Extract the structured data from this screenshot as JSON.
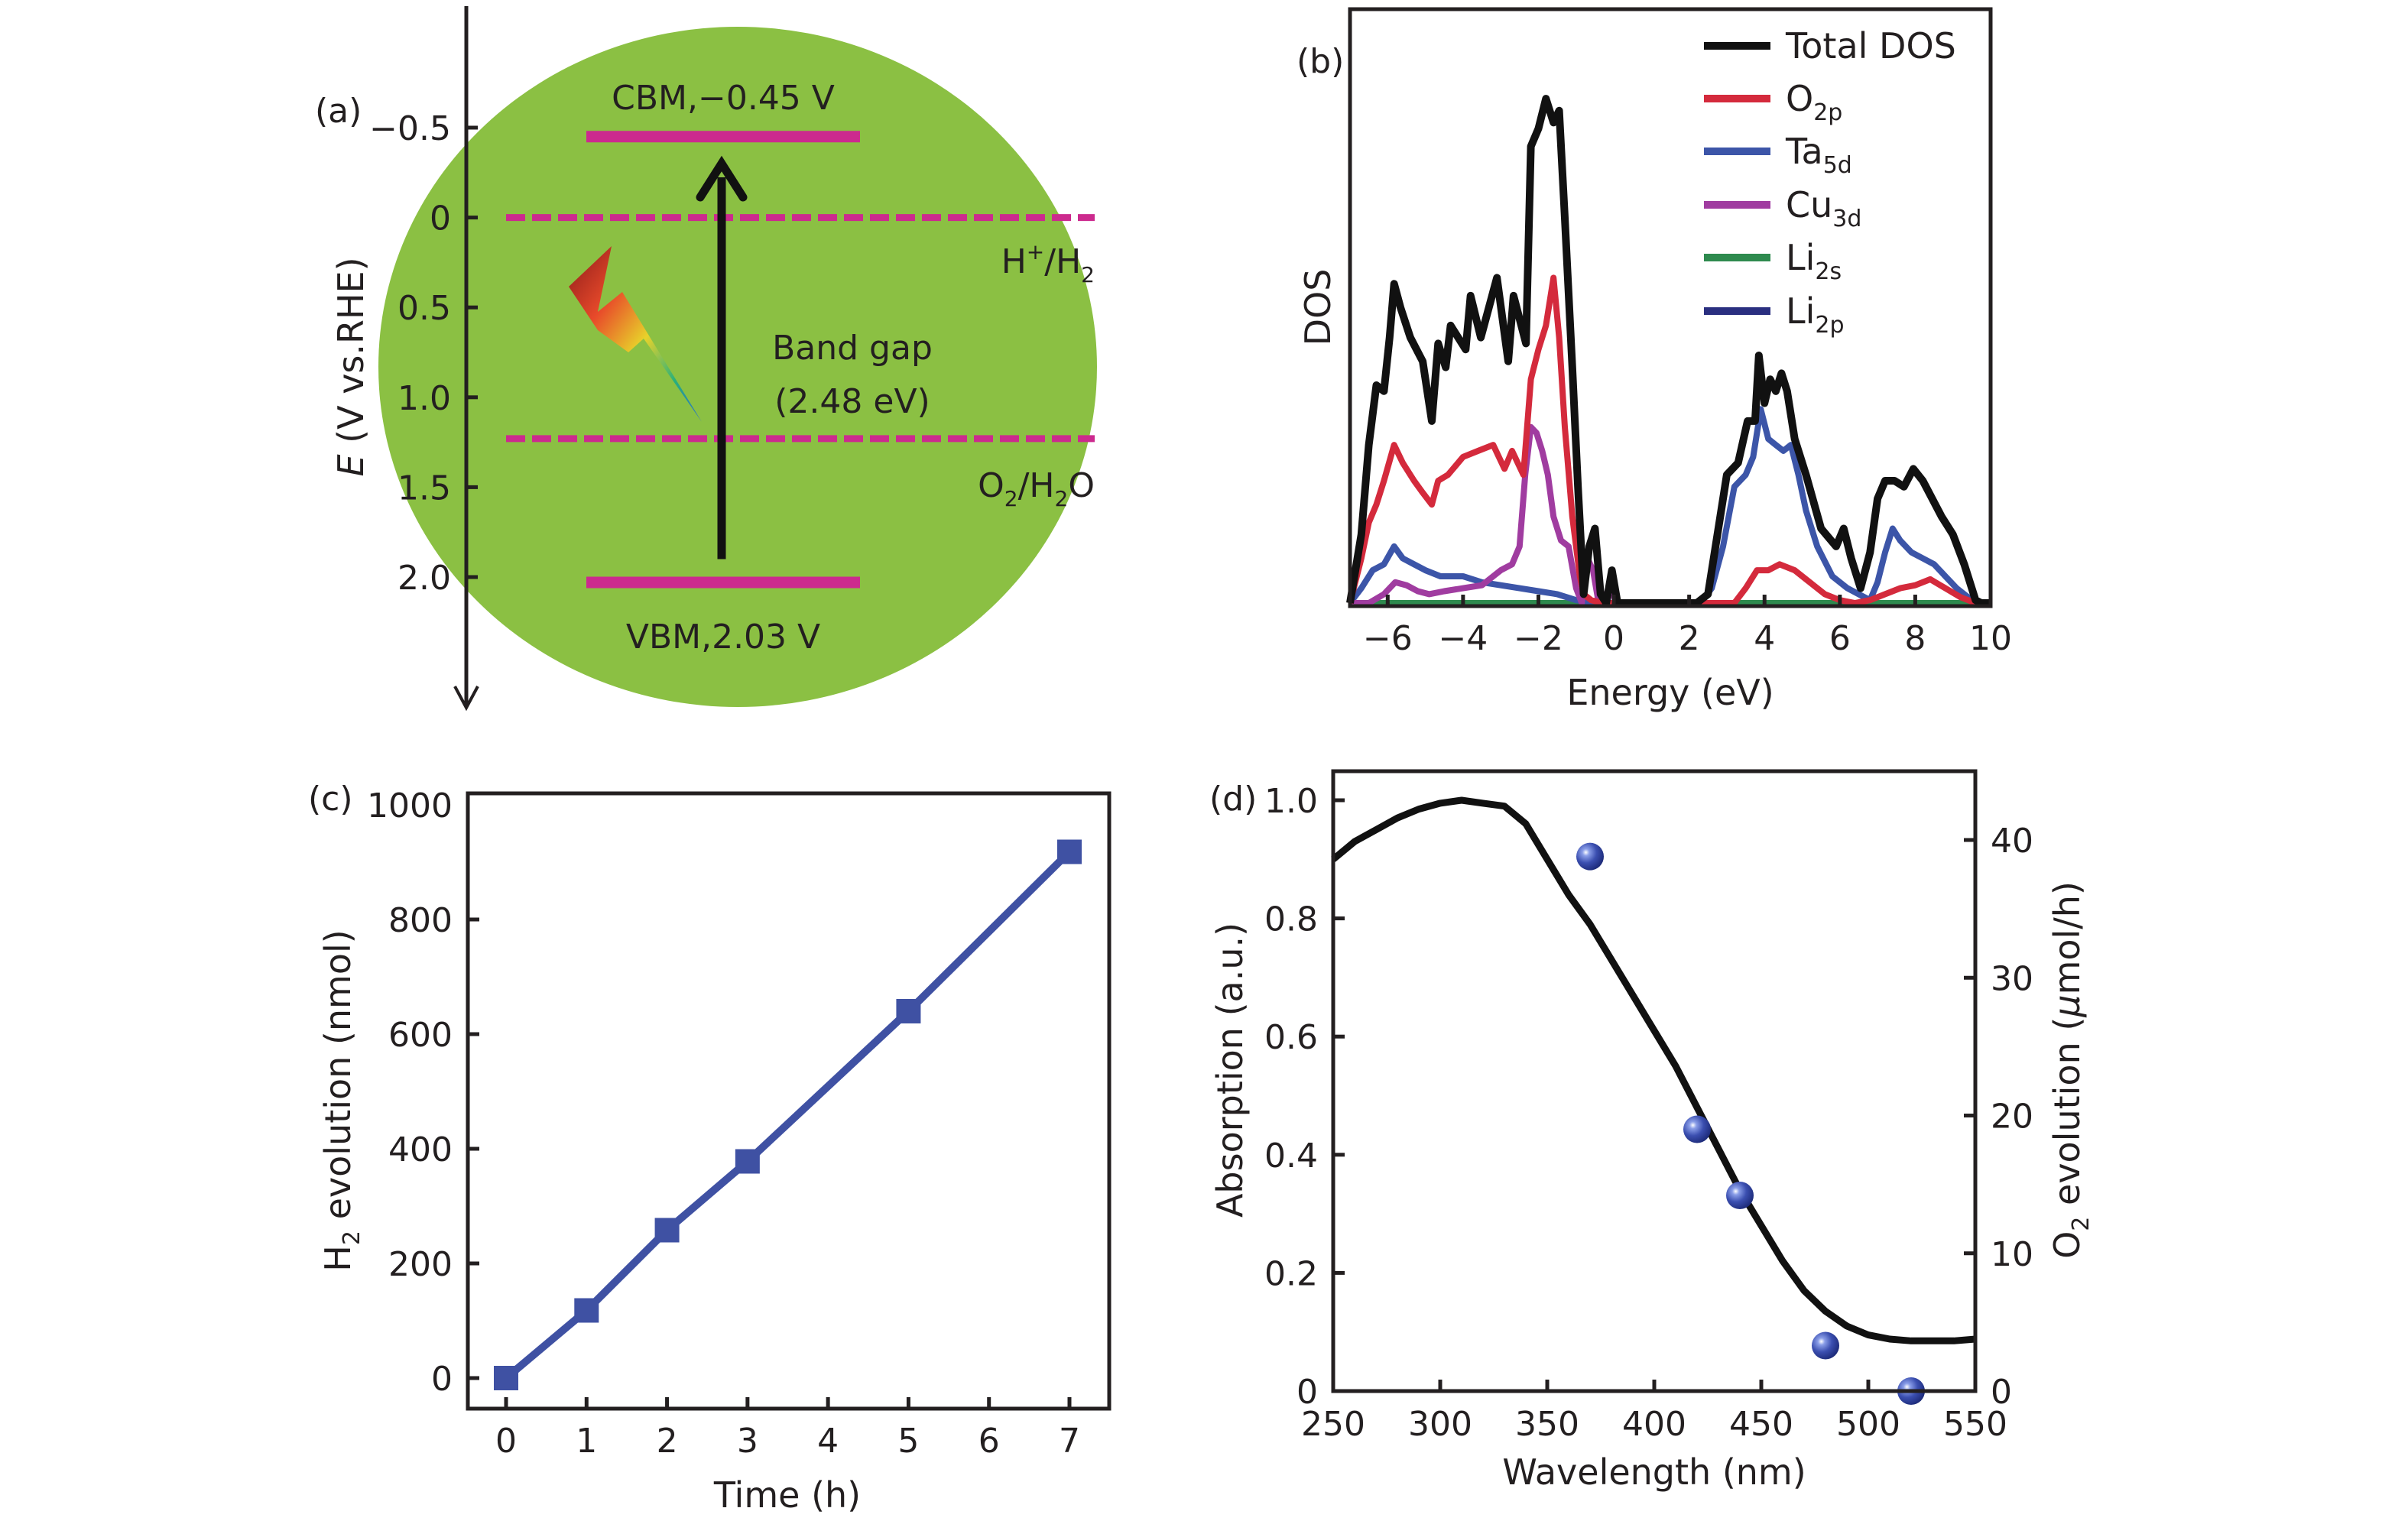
{
  "figure": {
    "panels": [
      "(a)",
      "(b)",
      "(c)",
      "(d)"
    ]
  },
  "chart_data": [
    {
      "panel": "(a)",
      "type": "diagram",
      "title": "",
      "ylabel_italic": "E",
      "ylabel_rest": " (V vs.RHE)",
      "yticks": [
        -0.5,
        0,
        0.5,
        1.0,
        1.5,
        2.0
      ],
      "ytick_labels": [
        "−0.5",
        "0",
        "0.5",
        "1.0",
        "1.5",
        "2.0"
      ],
      "yaxis_direction": "down",
      "ylim": [
        -1.0,
        2.6
      ],
      "levels": [
        {
          "name": "CBM",
          "value": -0.45,
          "style": "solid",
          "label": "CBM,−0.45 V"
        },
        {
          "name": "VBM",
          "value": 2.03,
          "style": "solid",
          "label": "VBM,2.03 V"
        },
        {
          "name": "H+/H2",
          "value": 0.0,
          "style": "dashed",
          "label_main": "H",
          "label_sup": "+",
          "label_mid": "/H",
          "label_sub": "2",
          "label_end": ""
        },
        {
          "name": "O2/H2O",
          "value": 1.23,
          "style": "dashed",
          "label_main": "O",
          "label_sub1": "2",
          "label_mid": "/H",
          "label_sub2": "2",
          "label_end": "O"
        }
      ],
      "band_gap_label_line1": "Band gap",
      "band_gap_label_line2": "(2.48 eV)",
      "band_gap_value_eV": 2.48,
      "arrow": {
        "from": 1.9,
        "to": -0.3
      },
      "colors": {
        "circle": "#8bc043",
        "levels": "#cc2a8e",
        "arrow": "#111111"
      }
    },
    {
      "panel": "(b)",
      "type": "line",
      "title": "",
      "xlabel": "Energy (eV)",
      "ylabel": "DOS",
      "xlim": [
        -7,
        10
      ],
      "ylim": [
        0,
        1
      ],
      "xticks": [
        -6,
        -4,
        -2,
        0,
        2,
        4,
        6,
        8,
        10
      ],
      "xtick_labels": [
        "−6",
        "−4",
        "−2",
        "0",
        "2",
        "4",
        "6",
        "8",
        "10"
      ],
      "legend_position": "top-right",
      "series": [
        {
          "name": "Total DOS",
          "label_main": "Total DOS",
          "label_sub": "",
          "color": "#111111",
          "x": [
            -7.0,
            -6.7,
            -6.5,
            -6.3,
            -6.1,
            -5.95,
            -5.83,
            -5.66,
            -5.4,
            -5.07,
            -4.83,
            -4.66,
            -4.46,
            -4.33,
            -3.93,
            -3.8,
            -3.53,
            -3.1,
            -2.8,
            -2.66,
            -2.33,
            -2.2,
            -2.0,
            -1.8,
            -1.6,
            -1.45,
            -1.3,
            -1.1,
            -0.95,
            -0.8,
            -0.65,
            -0.5,
            -0.35,
            -0.2,
            -0.05,
            0.1,
            0.25,
            2.2,
            2.5,
            2.8,
            3.0,
            3.3,
            3.55,
            3.75,
            3.85,
            4.0,
            4.15,
            4.3,
            4.45,
            4.6,
            4.8,
            5.1,
            5.5,
            5.9,
            6.1,
            6.3,
            6.55,
            6.8,
            7.0,
            7.2,
            7.45,
            7.7,
            7.95,
            8.2,
            8.45,
            8.7,
            9.0,
            9.3,
            9.6,
            9.75,
            10.0
          ],
          "y": [
            0.0,
            0.12,
            0.27,
            0.37,
            0.36,
            0.45,
            0.54,
            0.5,
            0.45,
            0.41,
            0.31,
            0.44,
            0.4,
            0.47,
            0.43,
            0.52,
            0.45,
            0.55,
            0.41,
            0.52,
            0.44,
            0.77,
            0.8,
            0.85,
            0.81,
            0.83,
            0.65,
            0.4,
            0.2,
            0.02,
            0.1,
            0.13,
            0.02,
            0.0,
            0.06,
            0.0,
            0.0,
            0.0,
            0.02,
            0.14,
            0.22,
            0.24,
            0.31,
            0.31,
            0.42,
            0.34,
            0.38,
            0.36,
            0.39,
            0.36,
            0.28,
            0.22,
            0.13,
            0.1,
            0.13,
            0.08,
            0.03,
            0.09,
            0.18,
            0.21,
            0.21,
            0.2,
            0.23,
            0.21,
            0.18,
            0.15,
            0.12,
            0.07,
            0.01,
            0.0,
            0.0
          ]
        },
        {
          "name": "O2p",
          "label_main": "O",
          "label_sub": "2p",
          "color": "#d42a3c",
          "x": [
            -7.0,
            -6.7,
            -6.5,
            -6.3,
            -6.1,
            -5.83,
            -5.6,
            -5.3,
            -5.07,
            -4.83,
            -4.66,
            -4.4,
            -4.0,
            -3.6,
            -3.2,
            -2.9,
            -2.7,
            -2.4,
            -2.2,
            -2.0,
            -1.8,
            -1.6,
            -1.45,
            -1.3,
            -1.1,
            -0.9,
            -0.8,
            -0.6,
            -0.3,
            0.0,
            3.2,
            3.5,
            3.8,
            4.1,
            4.4,
            4.8,
            5.2,
            5.6,
            6.0,
            6.4,
            6.8,
            7.2,
            7.6,
            8.0,
            8.4,
            8.8,
            9.2,
            9.6,
            10.0
          ],
          "y": [
            0.0,
            0.08,
            0.14,
            0.17,
            0.21,
            0.27,
            0.24,
            0.21,
            0.19,
            0.17,
            0.21,
            0.22,
            0.25,
            0.26,
            0.27,
            0.23,
            0.26,
            0.22,
            0.38,
            0.43,
            0.47,
            0.55,
            0.45,
            0.3,
            0.15,
            0.05,
            0.02,
            0.01,
            0.0,
            0.0,
            0.0,
            0.03,
            0.06,
            0.06,
            0.07,
            0.06,
            0.04,
            0.02,
            0.01,
            0.0,
            0.01,
            0.02,
            0.03,
            0.035,
            0.045,
            0.03,
            0.015,
            0.0,
            0.0
          ]
        },
        {
          "name": "Ta5d",
          "label_main": "Ta",
          "label_sub": "5d",
          "color": "#3c55a8",
          "x": [
            -7.0,
            -6.7,
            -6.4,
            -6.1,
            -5.83,
            -5.6,
            -5.3,
            -5.0,
            -4.6,
            -4.0,
            -3.5,
            -3.0,
            -2.5,
            -2.0,
            -1.5,
            -1.0,
            -0.5,
            0.0,
            2.3,
            2.6,
            2.9,
            3.2,
            3.5,
            3.7,
            3.9,
            4.1,
            4.3,
            4.5,
            4.7,
            4.9,
            5.1,
            5.4,
            5.8,
            6.2,
            6.5,
            6.8,
            7.0,
            7.2,
            7.4,
            7.6,
            7.9,
            8.2,
            8.5,
            8.8,
            9.1,
            9.4,
            9.7,
            10.0
          ],
          "y": [
            0.0,
            0.03,
            0.06,
            0.07,
            0.1,
            0.08,
            0.07,
            0.06,
            0.05,
            0.05,
            0.04,
            0.035,
            0.03,
            0.025,
            0.02,
            0.01,
            0.005,
            0.0,
            0.0,
            0.03,
            0.1,
            0.2,
            0.22,
            0.25,
            0.33,
            0.28,
            0.27,
            0.26,
            0.27,
            0.22,
            0.16,
            0.1,
            0.05,
            0.03,
            0.02,
            0.01,
            0.04,
            0.09,
            0.13,
            0.11,
            0.09,
            0.08,
            0.07,
            0.05,
            0.03,
            0.015,
            0.005,
            0.0
          ]
        },
        {
          "name": "Cu3d",
          "label_main": "Cu",
          "label_sub": "3d",
          "color": "#a03ca0",
          "x": [
            -7.0,
            -6.5,
            -6.1,
            -5.8,
            -5.5,
            -5.2,
            -4.9,
            -4.5,
            -4.0,
            -3.5,
            -3.0,
            -2.7,
            -2.5,
            -2.35,
            -2.2,
            -2.05,
            -1.9,
            -1.75,
            -1.6,
            -1.4,
            -1.2,
            -1.0,
            -0.85,
            -0.7,
            -0.55,
            -0.4,
            -0.25,
            -0.1,
            0.05,
            0.2,
            0.4
          ],
          "y": [
            0.0,
            0.005,
            0.02,
            0.04,
            0.035,
            0.025,
            0.02,
            0.025,
            0.03,
            0.035,
            0.06,
            0.07,
            0.1,
            0.22,
            0.3,
            0.29,
            0.26,
            0.22,
            0.15,
            0.11,
            0.1,
            0.03,
            0.0,
            0.08,
            0.06,
            0.0,
            0.0,
            0.04,
            0.0,
            0.0,
            0.0
          ]
        },
        {
          "name": "Li2s",
          "label_main": "Li",
          "label_sub": "2s",
          "color": "#2e8a4e",
          "x": [
            -7,
            10
          ],
          "y": [
            0.0,
            0.0
          ]
        },
        {
          "name": "Li2p",
          "label_main": "Li",
          "label_sub": "2p",
          "color": "#2a2f80",
          "x": [
            -7,
            10
          ],
          "y": [
            0.0,
            0.0
          ]
        }
      ]
    },
    {
      "panel": "(c)",
      "type": "line",
      "title": "",
      "xlabel": "Time (h)",
      "ylabel_main": "H",
      "ylabel_sub": "2",
      "ylabel_rest": " evolution (nmol)",
      "xlim": [
        -0.5,
        7.5
      ],
      "ylim": [
        -80,
        1000
      ],
      "xticks": [
        0,
        1,
        2,
        3,
        4,
        5,
        6,
        7
      ],
      "xtick_labels": [
        "0",
        "1",
        "2",
        "3",
        "4",
        "5",
        "6",
        "7"
      ],
      "yticks": [
        0,
        200,
        400,
        600,
        800,
        1000
      ],
      "ytick_labels": [
        "0",
        "200",
        "400",
        "600",
        "800",
        "1000"
      ],
      "series": [
        {
          "name": "H2 evolution",
          "color": "#3f51a3",
          "marker": "square",
          "x": [
            0,
            1,
            2,
            3,
            5,
            7
          ],
          "y": [
            0,
            118,
            258,
            378,
            640,
            918
          ]
        }
      ]
    },
    {
      "panel": "(d)",
      "type": "line+scatter",
      "title": "",
      "xlabel": "Wavelength (nm)",
      "ylabel": "Absorption (a.u.)",
      "ylabel_right_main": "O",
      "ylabel_right_sub": "2",
      "ylabel_right_rest": " evolution (",
      "ylabel_right_mu": "μ",
      "ylabel_right_end": "mol/h)",
      "xlim": [
        250,
        550
      ],
      "ylim_left": [
        0,
        1.07
      ],
      "ylim_right": [
        0,
        42.9
      ],
      "xticks": [
        250,
        300,
        350,
        400,
        450,
        500,
        550
      ],
      "xtick_labels": [
        "250",
        "300",
        "350",
        "400",
        "450",
        "500",
        "550"
      ],
      "yticks_left": [
        0,
        0.2,
        0.4,
        0.6,
        0.8,
        1.0
      ],
      "ytick_labels_left": [
        "0",
        "0.2",
        "0.4",
        "0.6",
        "0.8",
        "1.0"
      ],
      "yticks_right": [
        0,
        10,
        20,
        30,
        40
      ],
      "ytick_labels_right": [
        "0",
        "10",
        "20",
        "30",
        "40"
      ],
      "series": [
        {
          "name": "Absorption",
          "axis": "left",
          "color": "#111111",
          "x": [
            250,
            260,
            270,
            280,
            290,
            300,
            310,
            320,
            330,
            340,
            350,
            360,
            370,
            380,
            390,
            400,
            410,
            420,
            430,
            440,
            450,
            460,
            470,
            480,
            490,
            500,
            510,
            520,
            530,
            540,
            550
          ],
          "y": [
            0.9,
            0.93,
            0.95,
            0.97,
            0.985,
            0.995,
            1.0,
            0.995,
            0.99,
            0.96,
            0.9,
            0.84,
            0.79,
            0.73,
            0.67,
            0.61,
            0.55,
            0.48,
            0.41,
            0.34,
            0.28,
            0.22,
            0.17,
            0.135,
            0.11,
            0.095,
            0.088,
            0.085,
            0.085,
            0.085,
            0.088
          ]
        },
        {
          "name": "O2 evolution",
          "axis": "right",
          "color": "#3b4fb0",
          "marker": "sphere",
          "x": [
            370,
            420,
            440,
            480,
            520
          ],
          "y": [
            38.8,
            19.0,
            14.2,
            3.3,
            0.0
          ]
        }
      ]
    }
  ]
}
